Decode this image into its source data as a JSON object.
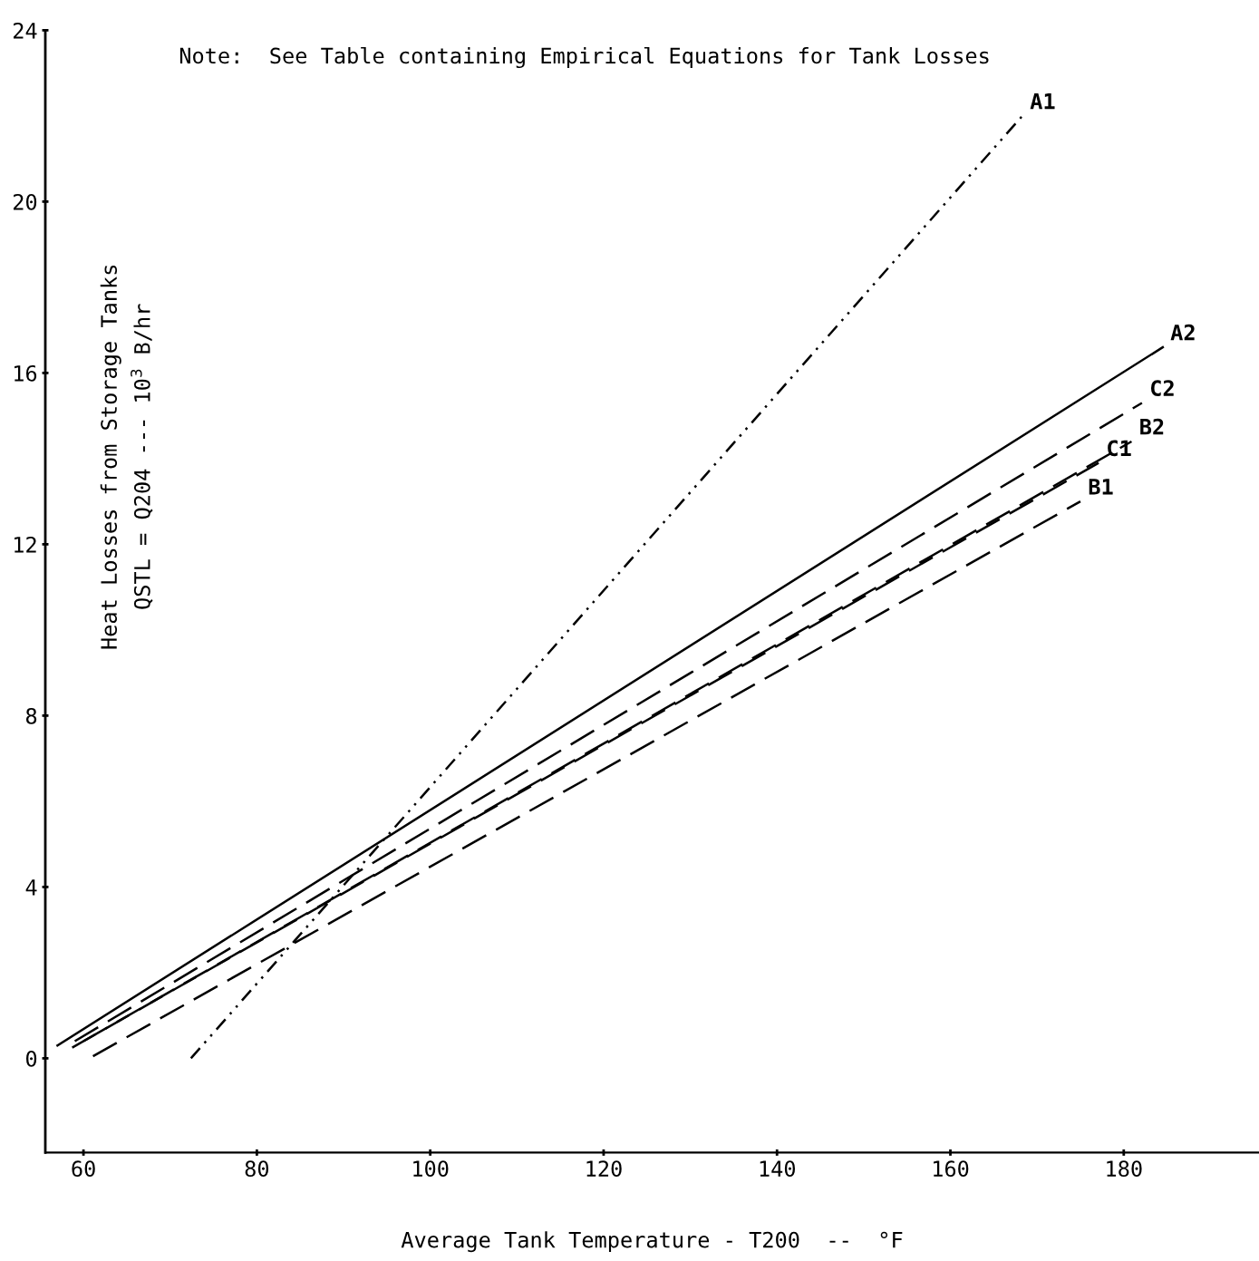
{
  "chart_data": {
    "type": "line",
    "xlabel": "Average Tank Temperature - T200  --  °F",
    "ylabel": "Heat Losses from Storage Tanks\nQSTL = Q204 --- 10$^{3}$ B/hr",
    "annotations": [
      "Note:  See Table containing Empirical Equations for Tank Losses"
    ],
    "series": [
      {
        "name": "A1",
        "color": "#000000",
        "line_style": "dotted",
        "x": [
          72.4,
          168.3
        ],
        "values": [
          0,
          22.0
        ]
      },
      {
        "name": "A2",
        "color": "#000000",
        "line_style": "solid",
        "x": [
          57,
          184.5
        ],
        "values": [
          0.3,
          16.6
        ]
      },
      {
        "name": "C2",
        "color": "#000000",
        "line_style": "dashed",
        "x": [
          59,
          182.1
        ],
        "values": [
          0.4,
          15.3
        ]
      },
      {
        "name": "B2",
        "color": "#000000",
        "line_style": "dashed",
        "x": [
          60,
          180.9
        ],
        "values": [
          0.4,
          14.4
        ]
      },
      {
        "name": "C1",
        "color": "#000000",
        "line_style": "dashed",
        "x": [
          58.7,
          177.1
        ],
        "values": [
          0.25,
          13.9
        ]
      },
      {
        "name": "B1",
        "color": "#000000",
        "line_style": "dashed",
        "x": [
          61.1,
          175
        ],
        "values": [
          0.05,
          13.0
        ]
      }
    ],
    "xlim": [
      55.6,
      195.6
    ],
    "ylim": [
      -2.2,
      24
    ],
    "xticks": [
      60,
      80,
      100,
      120,
      140,
      160,
      180
    ],
    "yticks": [
      0,
      4,
      8,
      12,
      16,
      20,
      24
    ],
    "grid": false,
    "legend": false,
    "marker": "none"
  }
}
